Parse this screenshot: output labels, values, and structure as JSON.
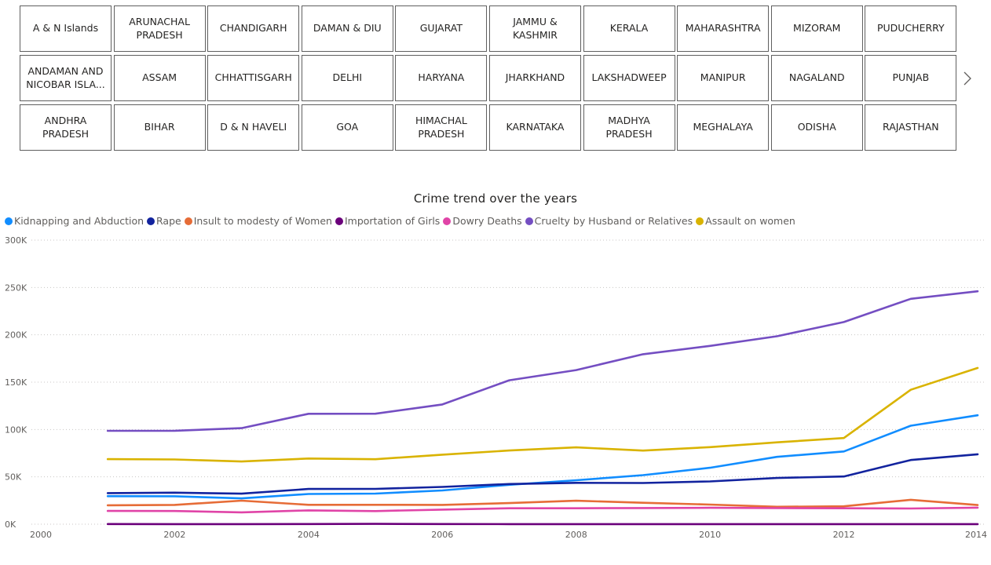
{
  "slicer": {
    "tiles": [
      "A & N Islands",
      "ARUNACHAL PRADESH",
      "CHANDIGARH",
      "DAMAN & DIU",
      "GUJARAT",
      "JAMMU & KASHMIR",
      "KERALA",
      "MAHARASHTRA",
      "MIZORAM",
      "PUDUCHERRY",
      "ANDAMAN AND NICOBAR ISLA...",
      "ASSAM",
      "CHHATTISGARH",
      "DELHI",
      "HARYANA",
      "JHARKHAND",
      "LAKSHADWEEP",
      "MANIPUR",
      "NAGALAND",
      "PUNJAB",
      "ANDHRA PRADESH",
      "BIHAR",
      "D & N HAVELI",
      "GOA",
      "HIMACHAL PRADESH",
      "KARNATAKA",
      "MADHYA PRADESH",
      "MEGHALAYA",
      "ODISHA",
      "RAJASTHAN"
    ],
    "next_icon": "chevron-right-icon"
  },
  "chart_data": {
    "type": "line",
    "title": "Crime trend over the years",
    "xlabel": "",
    "ylabel": "",
    "xlim": [
      2000,
      2014
    ],
    "ylim": [
      0,
      300000
    ],
    "x_ticks": [
      "2000",
      "2002",
      "2004",
      "2006",
      "2008",
      "2010",
      "2012",
      "2014"
    ],
    "y_ticks": [
      "0K",
      "50K",
      "100K",
      "150K",
      "200K",
      "250K",
      "300K"
    ],
    "grid": true,
    "legend_position": "top-left",
    "x": [
      2001,
      2002,
      2003,
      2004,
      2005,
      2006,
      2007,
      2008,
      2009,
      2010,
      2011,
      2012,
      2013,
      2014
    ],
    "series": [
      {
        "name": "Kidnapping and Abduction",
        "color": "#118DFF",
        "values": [
          29600,
          29500,
          27300,
          31900,
          32300,
          35600,
          41600,
          46400,
          51800,
          59600,
          71100,
          76800,
          104000,
          115000
        ]
      },
      {
        "name": "Rape",
        "color": "#12239E",
        "values": [
          32800,
          33300,
          32200,
          37200,
          37300,
          39400,
          42400,
          43700,
          43500,
          45200,
          48800,
          50400,
          67800,
          73800
        ]
      },
      {
        "name": "Insult to modesty of Women",
        "color": "#E66C37",
        "values": [
          20000,
          20400,
          24900,
          20500,
          20500,
          20400,
          22300,
          24800,
          22600,
          20700,
          18400,
          18900,
          25800,
          20200
        ]
      },
      {
        "name": "Importation of Girls",
        "color": "#6B007B",
        "values": [
          200,
          100,
          100,
          200,
          300,
          200,
          100,
          100,
          100,
          100,
          100,
          100,
          100,
          100
        ]
      },
      {
        "name": "Dowry Deaths",
        "color": "#E044A7",
        "values": [
          14000,
          13900,
          12500,
          14600,
          13800,
          15400,
          16800,
          16800,
          17100,
          17300,
          17000,
          16800,
          16600,
          17500
        ]
      },
      {
        "name": "Cruelty by Husband or Relatives",
        "color": "#744EC2",
        "values": [
          98600,
          98700,
          101400,
          116600,
          116700,
          126500,
          152000,
          162800,
          179500,
          188300,
          198500,
          213500,
          238000,
          246000
        ]
      },
      {
        "name": "Assault on women",
        "color": "#D9B300",
        "values": [
          68700,
          68400,
          66200,
          69400,
          68600,
          73400,
          77800,
          81100,
          77700,
          81400,
          86400,
          91000,
          142000,
          165000
        ]
      }
    ]
  }
}
